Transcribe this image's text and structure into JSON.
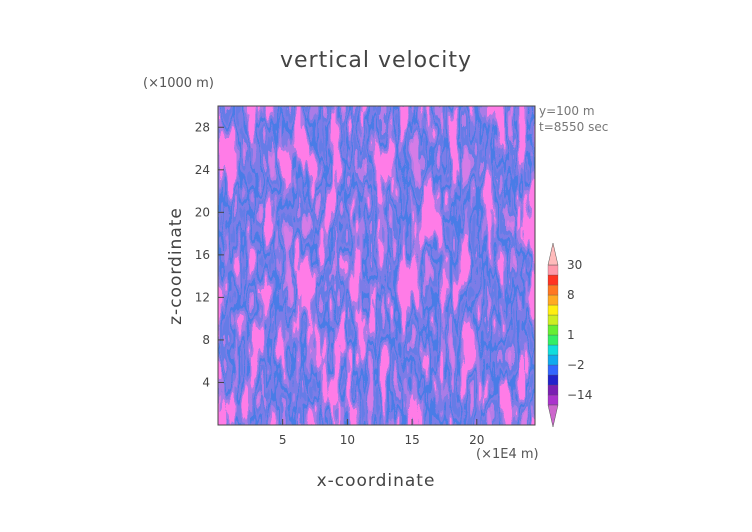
{
  "chart_data": {
    "type": "heatmap",
    "title": "vertical velocity",
    "xlabel": "x-coordinate",
    "ylabel": "z-coordinate",
    "x_unit": "(×1E4 m)",
    "y_unit": "(×1000 m)",
    "xlim": [
      0,
      24.5
    ],
    "ylim": [
      0,
      30
    ],
    "x_ticks": [
      5,
      10,
      15,
      20
    ],
    "y_ticks": [
      4,
      8,
      12,
      16,
      20,
      24,
      28
    ],
    "annotations": [
      "y=100 m",
      "t=8550 sec"
    ],
    "colorbar": {
      "tick_labels": [
        "30",
        "8",
        "1",
        "−2",
        "−14"
      ],
      "tick_values": [
        30,
        8,
        1,
        -2,
        -14
      ],
      "levels": [
        -20,
        -14,
        -8,
        -4,
        -2,
        -1,
        0,
        1,
        2,
        4,
        6,
        8,
        12,
        20,
        30
      ],
      "colors": [
        "#cc66cc",
        "#aa33cc",
        "#7a1fb3",
        "#2222cc",
        "#3366ff",
        "#11aaee",
        "#11dddd",
        "#33ee66",
        "#66ee33",
        "#ccee22",
        "#ffee11",
        "#ffaa22",
        "#ff7722",
        "#ff3322",
        "#ff99aa",
        "#ffbbbb"
      ],
      "extend": "both"
    },
    "grid": false,
    "legend": "colorbar right"
  }
}
